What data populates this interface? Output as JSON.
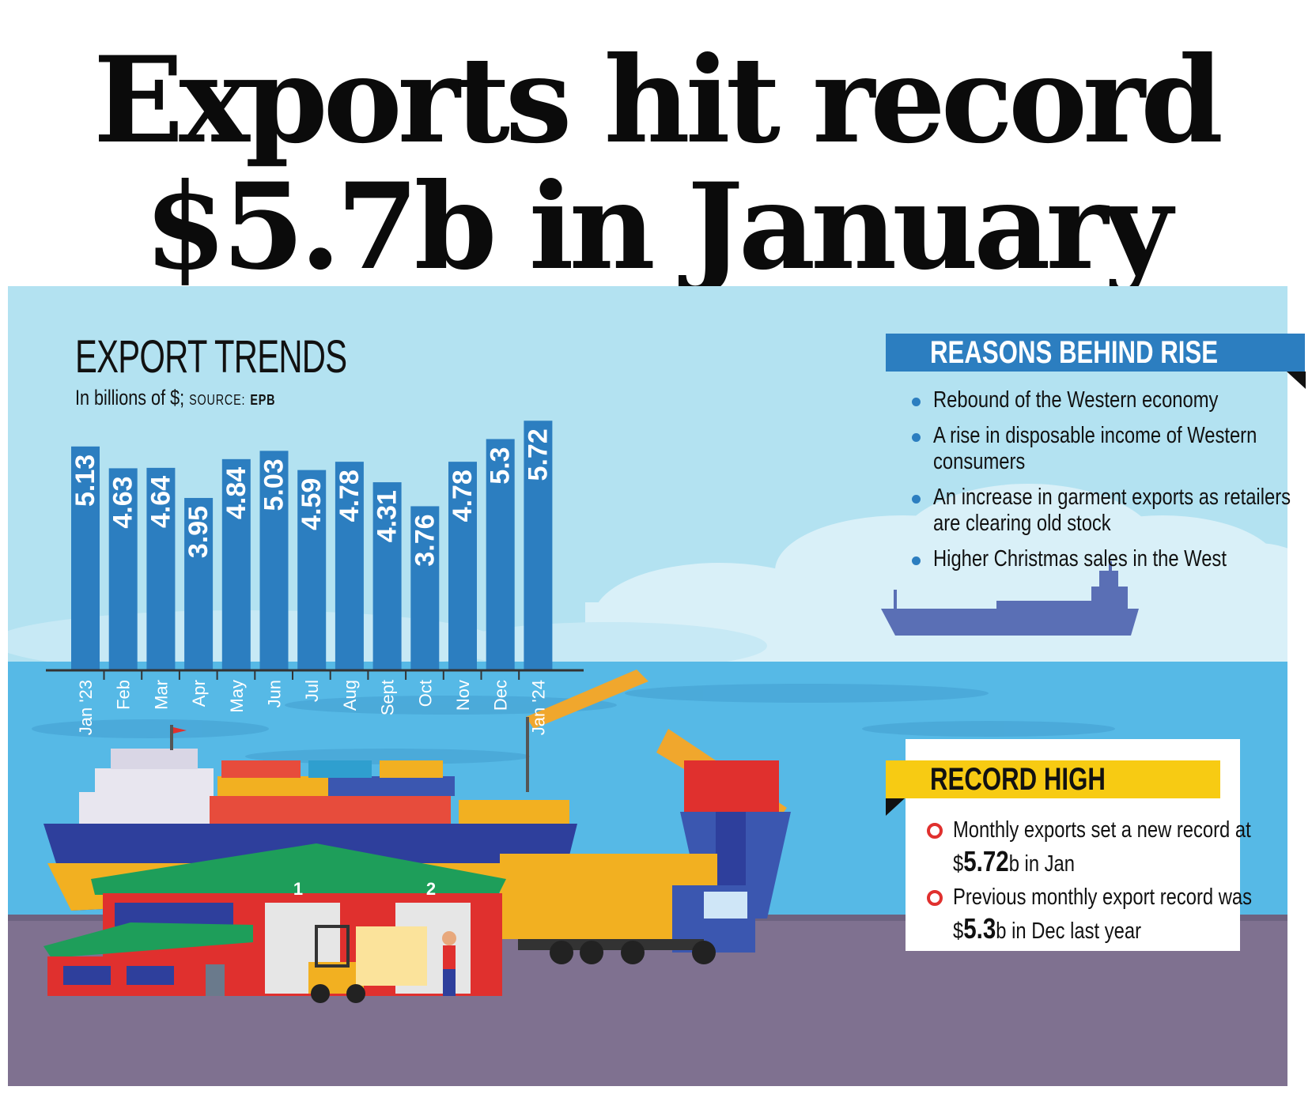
{
  "headline": {
    "line1": "Exports hit record",
    "line2": "$5.7b in January"
  },
  "section": {
    "title": "EXPORT TRENDS",
    "subtitle": "In billions of $;",
    "source_label": "SOURCE:",
    "source_value": "EPB"
  },
  "chart_data": {
    "type": "bar",
    "categories": [
      "Jan '23",
      "Feb",
      "Mar",
      "Apr",
      "May",
      "Jun",
      "Jul",
      "Aug",
      "Sept",
      "Oct",
      "Nov",
      "Dec",
      "Jan '24"
    ],
    "values": [
      5.13,
      4.63,
      4.64,
      3.95,
      4.84,
      5.03,
      4.59,
      4.78,
      4.31,
      3.76,
      4.78,
      5.3,
      5.72
    ],
    "labels": [
      "5.13",
      "4.63",
      "4.64",
      "3.95",
      "4.84",
      "5.03",
      "4.59",
      "4.78",
      "4.31",
      "3.76",
      "4.78",
      "5.3",
      "5.72"
    ],
    "title": "EXPORT TRENDS",
    "ylabel": "In billions of $",
    "grid": false,
    "bar_color": "#2c7ec0",
    "label_color": "#ffffff"
  },
  "reasons": {
    "title": "REASONS BEHIND RISE",
    "items": [
      "Rebound of the Western economy",
      "A rise in disposable income of Western consumers",
      "An increase in garment exports as retailers are clearing old stock",
      "Higher Christmas sales in the West"
    ]
  },
  "record": {
    "title": "RECORD HIGH",
    "item1": {
      "before": "Monthly exports set a new record at $",
      "value": "5.72",
      "after": "b in Jan"
    },
    "item2": {
      "before": "Previous monthly export record was $",
      "value": "5.3",
      "after": "b in Dec last year"
    }
  },
  "illustration": {
    "warehouse_door_1": "1",
    "warehouse_door_2": "2"
  },
  "colors": {
    "sky": "#b3e2f1",
    "sea": "#56b9e6",
    "ground": "#7f7190",
    "accent_blue": "#2c7ec0",
    "accent_yellow": "#f7cb13",
    "accent_red": "#e0302e"
  }
}
